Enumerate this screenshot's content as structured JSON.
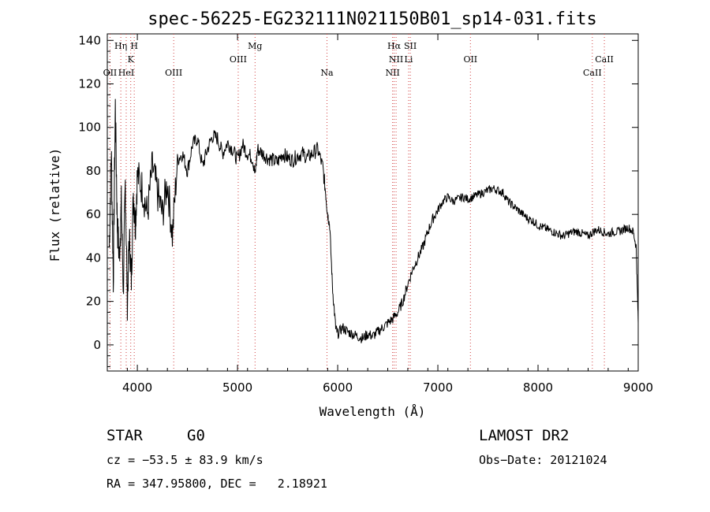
{
  "chart_data": {
    "type": "line",
    "title": "spec-56225-EG232111N021150B01_sp14-031.fits",
    "xlabel": "Wavelength (Å)",
    "ylabel": "Flux (relative)",
    "xlim": [
      3700,
      9000
    ],
    "ylim": [
      -12,
      143
    ],
    "x_ticks": [
      4000,
      5000,
      6000,
      7000,
      8000,
      9000
    ],
    "y_ticks": [
      0,
      20,
      40,
      60,
      80,
      100,
      120,
      140
    ],
    "grid": false,
    "emission_lines": [
      {
        "label": "OII",
        "wavelength": 3727,
        "row": 3
      },
      {
        "label": "Hη",
        "wavelength": 3835,
        "row": 1
      },
      {
        "label": "HeI",
        "wavelength": 3889,
        "row": 3
      },
      {
        "label": "K",
        "wavelength": 3934,
        "row": 2
      },
      {
        "label": "H",
        "wavelength": 3969,
        "row": 1
      },
      {
        "label": "OIII",
        "wavelength": 4363,
        "row": 3
      },
      {
        "label": "OIII",
        "wavelength": 5007,
        "row": 2
      },
      {
        "label": "Mg",
        "wavelength": 5175,
        "row": 1
      },
      {
        "label": "Na",
        "wavelength": 5893,
        "row": 3
      },
      {
        "label": "Hα",
        "wavelength": 6563,
        "row": 1
      },
      {
        "label": "NII",
        "wavelength": 6548,
        "row": 3
      },
      {
        "label": "NII",
        "wavelength": 6583,
        "row": 2
      },
      {
        "label": "Li",
        "wavelength": 6708,
        "row": 2
      },
      {
        "label": "OII",
        "wavelength": 7325,
        "row": 2
      },
      {
        "label": "SII",
        "wavelength": 6725,
        "row": 1
      },
      {
        "label": "CaII",
        "wavelength": 8542,
        "row": 3
      },
      {
        "label": "CaII",
        "wavelength": 8662,
        "row": 2
      }
    ],
    "line_label_positions_note": "",
    "series": [
      {
        "x": [
          3720,
          3740,
          3760,
          3780,
          3800,
          3820,
          3840,
          3860,
          3880,
          3900,
          3920,
          3940,
          3960,
          3980,
          4000,
          4050,
          4100,
          4150,
          4200,
          4250,
          4300,
          4350,
          4400,
          4450,
          4500,
          4550,
          4600,
          4650,
          4700,
          4750,
          4800,
          4850,
          4900,
          4950,
          5000,
          5050,
          5100,
          5150,
          5175,
          5200,
          5250,
          5300,
          5350,
          5400,
          5450,
          5500,
          5550,
          5600,
          5650,
          5700,
          5750,
          5800,
          5850,
          5880,
          5900,
          5920,
          5950,
          5980,
          6000,
          6050,
          6100,
          6150,
          6200,
          6250,
          6300,
          6350,
          6400,
          6450,
          6500,
          6550,
          6600,
          6650,
          6700,
          6750,
          6800,
          6850,
          6900,
          6950,
          7000,
          7050,
          7100,
          7150,
          7200,
          7250,
          7300,
          7350,
          7400,
          7450,
          7500,
          7550,
          7600,
          7650,
          7700,
          7750,
          7800,
          7850,
          7900,
          7950,
          8000,
          8050,
          8100,
          8150,
          8200,
          8250,
          8300,
          8350,
          8400,
          8450,
          8500,
          8550,
          8600,
          8650,
          8700,
          8750,
          8800,
          8850,
          8900,
          8950,
          8980,
          9000
        ],
        "y": [
          45,
          90,
          30,
          110,
          55,
          40,
          65,
          25,
          75,
          20,
          50,
          30,
          70,
          55,
          78,
          72,
          60,
          82,
          70,
          60,
          75,
          50,
          85,
          88,
          80,
          92,
          95,
          82,
          90,
          96,
          95,
          88,
          93,
          90,
          85,
          92,
          88,
          86,
          78,
          90,
          88,
          86,
          85,
          84,
          88,
          86,
          85,
          87,
          88,
          86,
          88,
          90,
          82,
          70,
          60,
          55,
          25,
          8,
          5,
          8,
          6,
          5,
          4,
          3,
          5,
          4,
          6,
          8,
          10,
          12,
          15,
          20,
          28,
          35,
          40,
          45,
          52,
          58,
          62,
          66,
          68,
          66,
          67,
          68,
          67,
          68,
          69,
          70,
          71,
          72,
          71,
          70,
          66,
          64,
          62,
          60,
          58,
          57,
          55,
          54,
          53,
          52,
          51,
          50,
          51,
          52,
          52,
          51,
          50,
          52,
          53,
          52,
          51,
          52,
          52,
          53,
          54,
          52,
          45,
          10
        ]
      }
    ]
  },
  "info": {
    "object_class": "STAR",
    "subclass": "G0",
    "survey": "LAMOST DR2",
    "cz": "cz = −53.5 ± 83.9 km/s",
    "obs_date": "Obs−Date: 20121024",
    "coords": "RA = 347.95800, DEC =   2.18921"
  },
  "colors": {
    "spectrum": "#000000",
    "line_marker": "#d04040",
    "background": "#ffffff"
  }
}
